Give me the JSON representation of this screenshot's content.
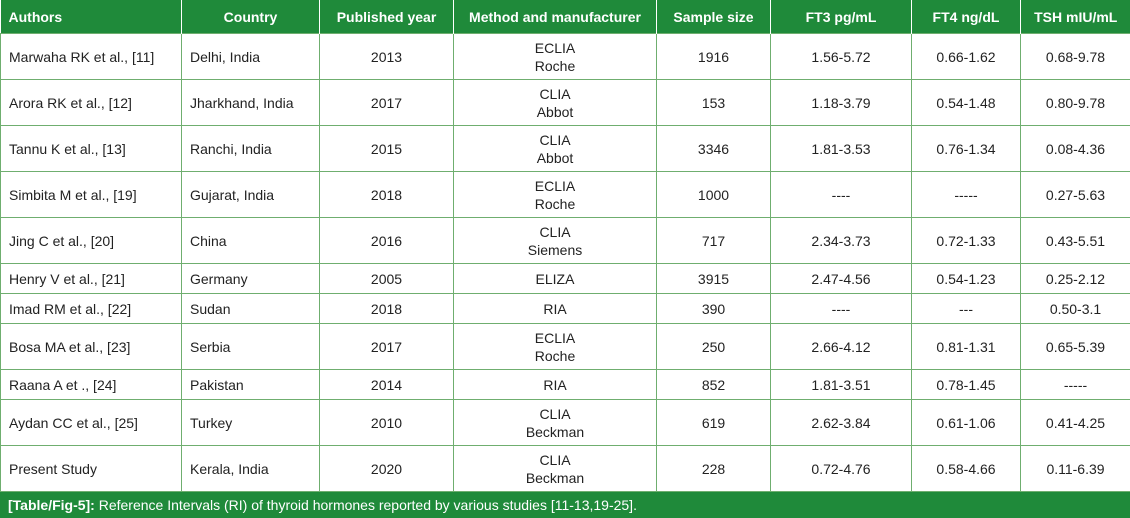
{
  "table": {
    "headers": [
      "Authors",
      "Country",
      "Published year",
      "Method and manufacturer",
      "Sample size",
      "FT3 pg/mL",
      "FT4 ng/dL",
      "TSH mIU/mL"
    ],
    "rows": [
      {
        "author": "Marwaha RK et al., [11]",
        "country": "Delhi, India",
        "year": "2013",
        "method": "ECLIA",
        "manufacturer": "Roche",
        "sample": "1916",
        "ft3": "1.56-5.72",
        "ft4": "0.66-1.62",
        "tsh": "0.68-9.78"
      },
      {
        "author": "Arora RK et al., [12]",
        "country": "Jharkhand, India",
        "year": "2017",
        "method": "CLIA",
        "manufacturer": "Abbot",
        "sample": "153",
        "ft3": "1.18-3.79",
        "ft4": "0.54-1.48",
        "tsh": "0.80-9.78"
      },
      {
        "author": "Tannu K et al., [13]",
        "country": "Ranchi, India",
        "year": "2015",
        "method": "CLIA",
        "manufacturer": "Abbot",
        "sample": "3346",
        "ft3": "1.81-3.53",
        "ft4": "0.76-1.34",
        "tsh": "0.08-4.36"
      },
      {
        "author": "Simbita M et al., [19]",
        "country": "Gujarat, India",
        "year": "2018",
        "method": "ECLIA",
        "manufacturer": "Roche",
        "sample": "1000",
        "ft3": "----",
        "ft4": "-----",
        "tsh": "0.27-5.63"
      },
      {
        "author": "Jing C et al., [20]",
        "country": "China",
        "year": "2016",
        "method": "CLIA",
        "manufacturer": "Siemens",
        "sample": "717",
        "ft3": "2.34-3.73",
        "ft4": "0.72-1.33",
        "tsh": "0.43-5.51"
      },
      {
        "author": "Henry V et al., [21]",
        "country": "Germany",
        "year": "2005",
        "method": "ELIZA",
        "manufacturer": "",
        "sample": "3915",
        "ft3": "2.47-4.56",
        "ft4": "0.54-1.23",
        "tsh": "0.25-2.12"
      },
      {
        "author": "Imad RM et al., [22]",
        "country": "Sudan",
        "year": "2018",
        "method": "RIA",
        "manufacturer": "",
        "sample": "390",
        "ft3": "----",
        "ft4": "---",
        "tsh": "0.50-3.1"
      },
      {
        "author": "Bosa MA et al., [23]",
        "country": "Serbia",
        "year": "2017",
        "method": "ECLIA",
        "manufacturer": "Roche",
        "sample": "250",
        "ft3": "2.66-4.12",
        "ft4": "0.81-1.31",
        "tsh": "0.65-5.39"
      },
      {
        "author": "Raana A et ., [24]",
        "country": "Pakistan",
        "year": "2014",
        "method": "RIA",
        "manufacturer": "",
        "sample": "852",
        "ft3": "1.81-3.51",
        "ft4": "0.78-1.45",
        "tsh": "-----"
      },
      {
        "author": "Aydan CC et al., [25]",
        "country": "Turkey",
        "year": "2010",
        "method": "CLIA",
        "manufacturer": "Beckman",
        "sample": "619",
        "ft3": "2.62-3.84",
        "ft4": "0.61-1.06",
        "tsh": "0.41-4.25"
      },
      {
        "author": "Present Study",
        "country": "Kerala, India",
        "year": "2020",
        "method": "CLIA",
        "manufacturer": "Beckman",
        "sample": "228",
        "ft3": "0.72-4.76",
        "ft4": "0.58-4.66",
        "tsh": "0.11-6.39"
      }
    ]
  },
  "caption": {
    "label": "[Table/Fig-5]:",
    "text": " Reference Intervals (RI) of thyroid hormones reported by various studies [11-13,19-25]."
  },
  "colors": {
    "header_bg": "#1f8a3a",
    "border": "#6fae6f"
  }
}
